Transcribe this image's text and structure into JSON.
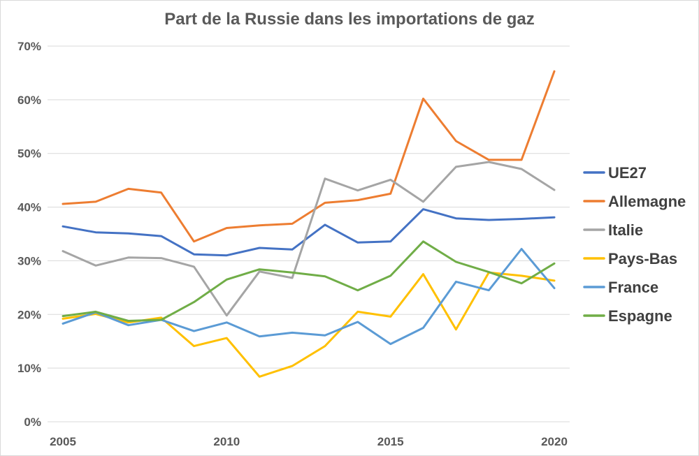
{
  "chart_data": {
    "type": "line",
    "title": "Part de la Russie dans les importations de gaz",
    "xlabel": "",
    "ylabel": "",
    "x": [
      2005,
      2006,
      2007,
      2008,
      2009,
      2010,
      2011,
      2012,
      2013,
      2014,
      2015,
      2016,
      2017,
      2018,
      2019,
      2020
    ],
    "x_ticks": [
      2005,
      2010,
      2015,
      2020
    ],
    "x_tick_labels": [
      "2005",
      "2010",
      "2015",
      "2020"
    ],
    "y_ticks": [
      0,
      10,
      20,
      30,
      40,
      50,
      60,
      70
    ],
    "y_tick_labels": [
      "0%",
      "10%",
      "20%",
      "30%",
      "40%",
      "50%",
      "60%",
      "70%"
    ],
    "ylim": [
      0,
      70
    ],
    "grid": "horizontal",
    "legend_position": "right",
    "series": [
      {
        "name": "UE27",
        "color": "#4472c4",
        "values": [
          36.4,
          35.3,
          35.1,
          34.6,
          31.2,
          31.0,
          32.4,
          32.1,
          36.7,
          33.4,
          33.6,
          39.6,
          37.9,
          37.6,
          37.8,
          38.1
        ]
      },
      {
        "name": "Allemagne",
        "color": "#ed7d31",
        "values": [
          40.6,
          41.0,
          43.4,
          42.7,
          33.6,
          36.1,
          36.6,
          36.9,
          40.8,
          41.3,
          42.5,
          60.2,
          52.3,
          48.8,
          48.8,
          65.3
        ]
      },
      {
        "name": "Italie",
        "color": "#a5a5a5",
        "values": [
          31.8,
          29.1,
          30.6,
          30.5,
          28.9,
          19.8,
          28.0,
          26.8,
          45.3,
          43.1,
          45.1,
          41.0,
          47.5,
          48.4,
          47.1,
          43.2
        ]
      },
      {
        "name": "Pays-Bas",
        "color": "#ffc000",
        "values": [
          19.2,
          20.1,
          18.5,
          19.4,
          14.1,
          15.6,
          8.4,
          10.4,
          14.1,
          20.5,
          19.6,
          27.5,
          17.2,
          27.8,
          27.2,
          26.3
        ]
      },
      {
        "name": "France",
        "color": "#5b9bd5",
        "values": [
          18.3,
          20.4,
          18.0,
          19.0,
          16.9,
          18.5,
          15.9,
          16.6,
          16.1,
          18.6,
          14.5,
          17.5,
          26.1,
          24.5,
          32.2,
          24.9
        ]
      },
      {
        "name": "Espagne",
        "color": "#70ad47",
        "values": [
          19.7,
          20.5,
          18.8,
          19.0,
          22.3,
          26.5,
          28.4,
          27.8,
          27.1,
          24.5,
          27.2,
          33.6,
          29.8,
          27.9,
          25.8,
          29.5
        ]
      }
    ]
  }
}
